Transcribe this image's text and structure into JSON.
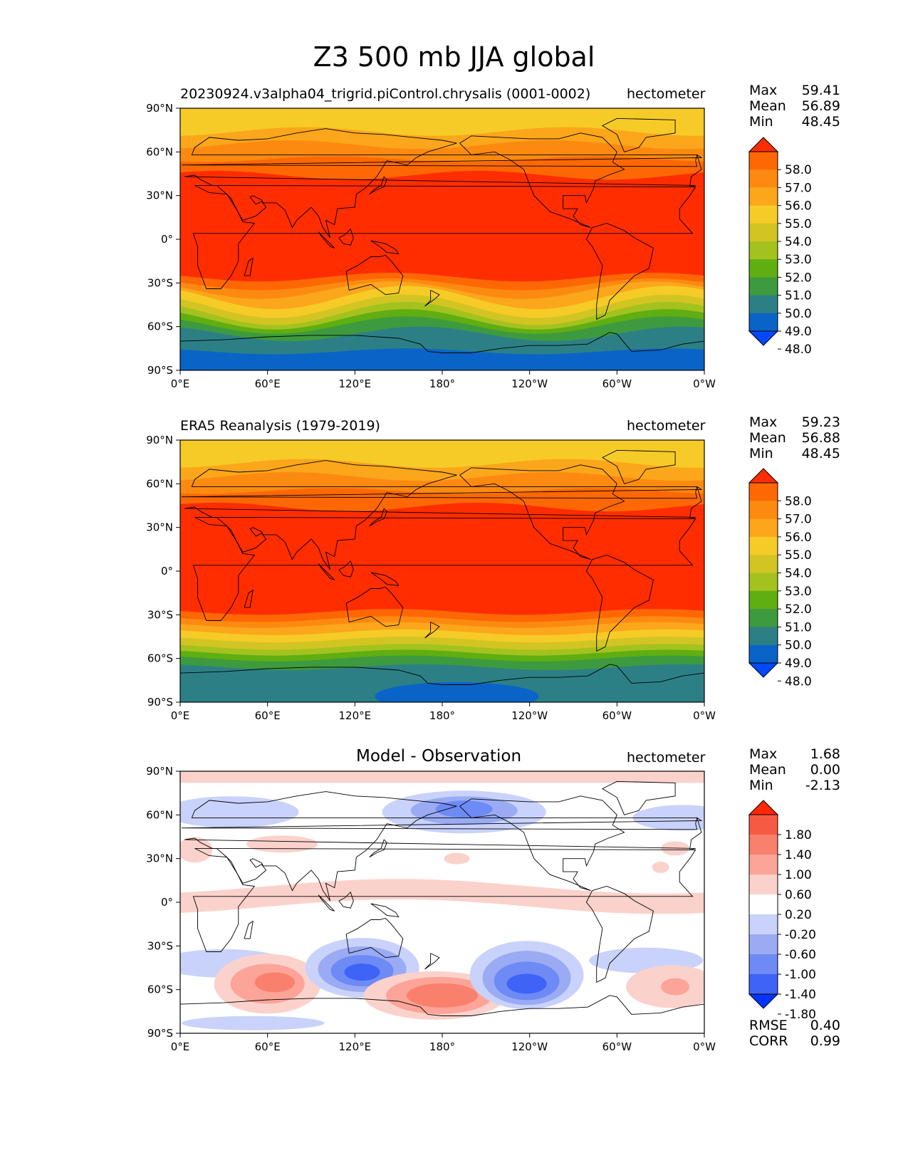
{
  "title": "Z3 500 mb JJA global",
  "colors": {
    "main_levels": [
      "#0049ff",
      "#0a64c8",
      "#2c8085",
      "#3e9a3e",
      "#5fae12",
      "#a4c21e",
      "#d2c523",
      "#f6cb27",
      "#fba61b",
      "#fd8a10",
      "#fe6804",
      "#ff2d00"
    ],
    "diff_levels": [
      "#0034ff",
      "#3f62f7",
      "#6e8af5",
      "#9aabf4",
      "#c9d2fa",
      "#ffffff",
      "#fbd2cb",
      "#fba497",
      "#f9806c",
      "#f75a42",
      "#ff2800"
    ]
  },
  "panels": [
    {
      "id": "test",
      "left_title": "20230924.v3alpha04_trigrid.piControl.chrysalis (0001-0002)",
      "center_title": "",
      "units": "hectometer",
      "stats": [
        {
          "label": "Max",
          "value": "59.41"
        },
        {
          "label": "Mean",
          "value": "56.89"
        },
        {
          "label": "Min",
          "value": "48.45"
        }
      ],
      "colorbar_ticks": [
        "58.0",
        "57.0",
        "56.0",
        "55.0",
        "54.0",
        "53.0",
        "52.0",
        "51.0",
        "50.0",
        "49.0",
        "48.0"
      ],
      "metrics": []
    },
    {
      "id": "reference",
      "left_title": "ERA5 Reanalysis (1979-2019)",
      "center_title": "",
      "units": "hectometer",
      "stats": [
        {
          "label": "Max",
          "value": "59.23"
        },
        {
          "label": "Mean",
          "value": "56.88"
        },
        {
          "label": "Min",
          "value": "48.45"
        }
      ],
      "colorbar_ticks": [
        "58.0",
        "57.0",
        "56.0",
        "55.0",
        "54.0",
        "53.0",
        "52.0",
        "51.0",
        "50.0",
        "49.0",
        "48.0"
      ],
      "metrics": []
    },
    {
      "id": "difference",
      "left_title": "",
      "center_title": "Model - Observation",
      "units": "hectometer",
      "stats": [
        {
          "label": "Max",
          "value": "1.68"
        },
        {
          "label": "Mean",
          "value": "0.00"
        },
        {
          "label": "Min",
          "value": "-2.13"
        }
      ],
      "colorbar_ticks": [
        "1.80",
        "1.40",
        "1.00",
        "0.60",
        "0.20",
        "-0.20",
        "-0.60",
        "-1.00",
        "-1.40",
        "-1.80"
      ],
      "metrics": [
        {
          "label": "RMSE",
          "value": "0.40"
        },
        {
          "label": "CORR",
          "value": "0.99"
        }
      ]
    }
  ],
  "axes": {
    "lat_ticks": [
      "90°N",
      "60°N",
      "30°N",
      "0°",
      "30°S",
      "60°S",
      "90°S"
    ],
    "lon_ticks": [
      "0°E",
      "60°E",
      "120°E",
      "180°",
      "120°W",
      "60°W",
      "0°W"
    ]
  }
}
